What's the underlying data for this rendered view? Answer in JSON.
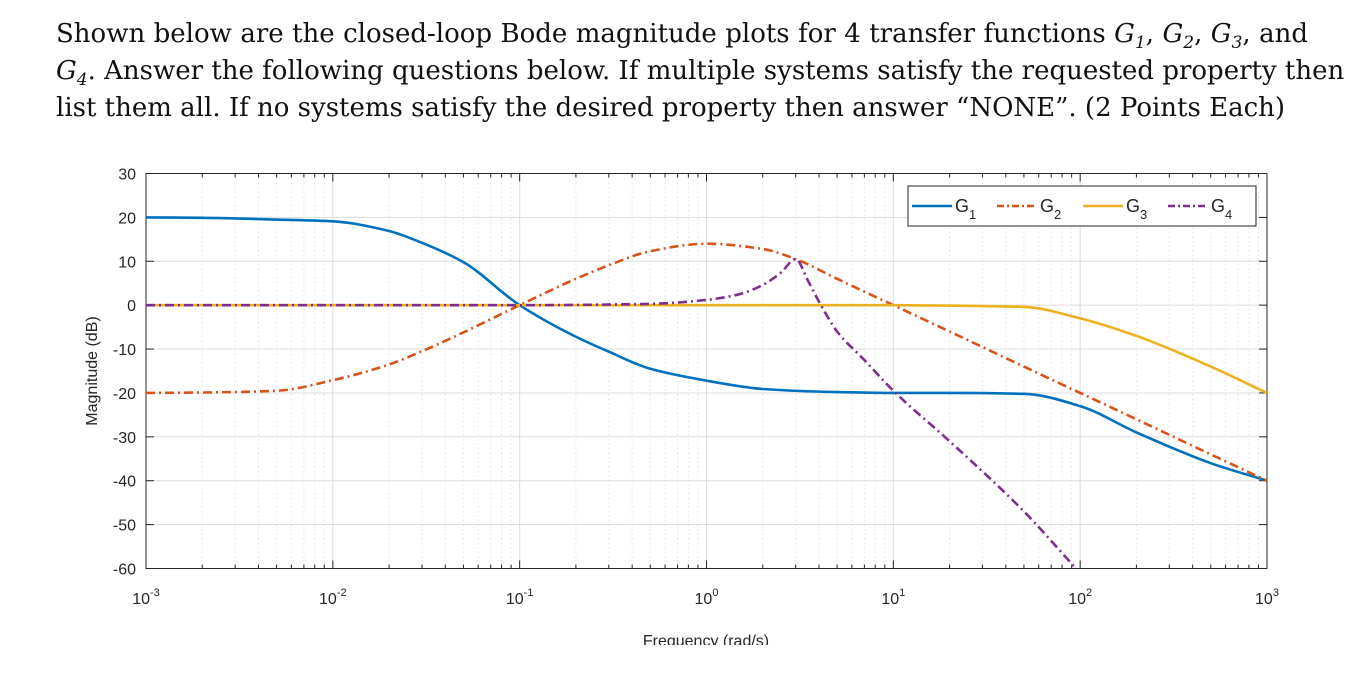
{
  "question": {
    "intro": "Shown below are the closed-loop Bode magnitude plots for 4 transfer functions",
    "sym": "G",
    "i1": "1",
    "i2": "2",
    "i3": "3",
    "i4": "4",
    "and": "and",
    "sentence2": ". Answer the following questions below. If multiple systems satisfy the requested property then",
    "line3": "list them all. If no systems satisfy the desired property then answer “NONE”. (2 Points Each)"
  },
  "chart_data": {
    "type": "line",
    "title": "",
    "xlabel": "Frequency (rad/s)",
    "ylabel": "Magnitude (dB)",
    "xscale": "log",
    "xlim": [
      0.001,
      1000
    ],
    "ylim": [
      -60,
      30
    ],
    "yticks": [
      30,
      20,
      10,
      0,
      -10,
      -20,
      -30,
      -40,
      -50,
      -60
    ],
    "xticks": [
      {
        "base": "10",
        "exp": "-3"
      },
      {
        "base": "10",
        "exp": "-2"
      },
      {
        "base": "10",
        "exp": "-1"
      },
      {
        "base": "10",
        "exp": "0"
      },
      {
        "base": "10",
        "exp": "1"
      },
      {
        "base": "10",
        "exp": "2"
      },
      {
        "base": "10",
        "exp": "3"
      }
    ],
    "grid": true,
    "legend_position": "top-right",
    "series": [
      {
        "name": "G",
        "sub": "1",
        "color": "#0072BD",
        "dash": "solid",
        "x": [
          0.001,
          0.002,
          0.005,
          0.01,
          0.02,
          0.03,
          0.05,
          0.1,
          0.2,
          0.3,
          0.5,
          1,
          2,
          5,
          10,
          20,
          50,
          100,
          200,
          500,
          1000
        ],
        "y": [
          20,
          19.9,
          19.5,
          19.1,
          16.9,
          14.2,
          9.8,
          0,
          -7.2,
          -10.6,
          -14.5,
          -17.2,
          -19.1,
          -19.8,
          -20,
          -20,
          -20.2,
          -23,
          -29,
          -36,
          -40
        ]
      },
      {
        "name": "G",
        "sub": "2",
        "color": "#D95319",
        "dash": "dashdot",
        "x": [
          0.001,
          0.002,
          0.005,
          0.01,
          0.02,
          0.03,
          0.05,
          0.1,
          0.2,
          0.3,
          0.5,
          1,
          2,
          3,
          5,
          10,
          20,
          50,
          100,
          200,
          500,
          1000
        ],
        "y": [
          -20,
          -19.9,
          -19.5,
          -17.1,
          -13.5,
          -10.5,
          -6.2,
          0,
          6,
          9.1,
          12.3,
          14,
          12.8,
          10.5,
          6,
          0,
          -6,
          -14,
          -20,
          -26,
          -34,
          -40
        ]
      },
      {
        "name": "G",
        "sub": "3",
        "color": "#EDB120",
        "dash": "solid",
        "x": [
          0.001,
          0.01,
          0.1,
          1,
          10,
          20,
          50,
          100,
          200,
          500,
          1000
        ],
        "y": [
          0,
          0,
          0,
          0,
          0,
          -0.1,
          -0.4,
          -3,
          -7,
          -14,
          -20
        ]
      },
      {
        "name": "G",
        "sub": "4",
        "color": "#7E2F8E",
        "dash": "dashdot",
        "x": [
          0.001,
          0.01,
          0.1,
          0.5,
          1,
          1.5,
          2,
          2.5,
          3,
          3.5,
          4,
          5,
          7,
          10,
          20,
          50,
          95
        ],
        "y": [
          0,
          0,
          0,
          0.3,
          1.2,
          2.5,
          4.6,
          7.4,
          10.5,
          5.5,
          0.8,
          -6,
          -12.5,
          -19.5,
          -31,
          -47,
          -60
        ]
      }
    ]
  }
}
